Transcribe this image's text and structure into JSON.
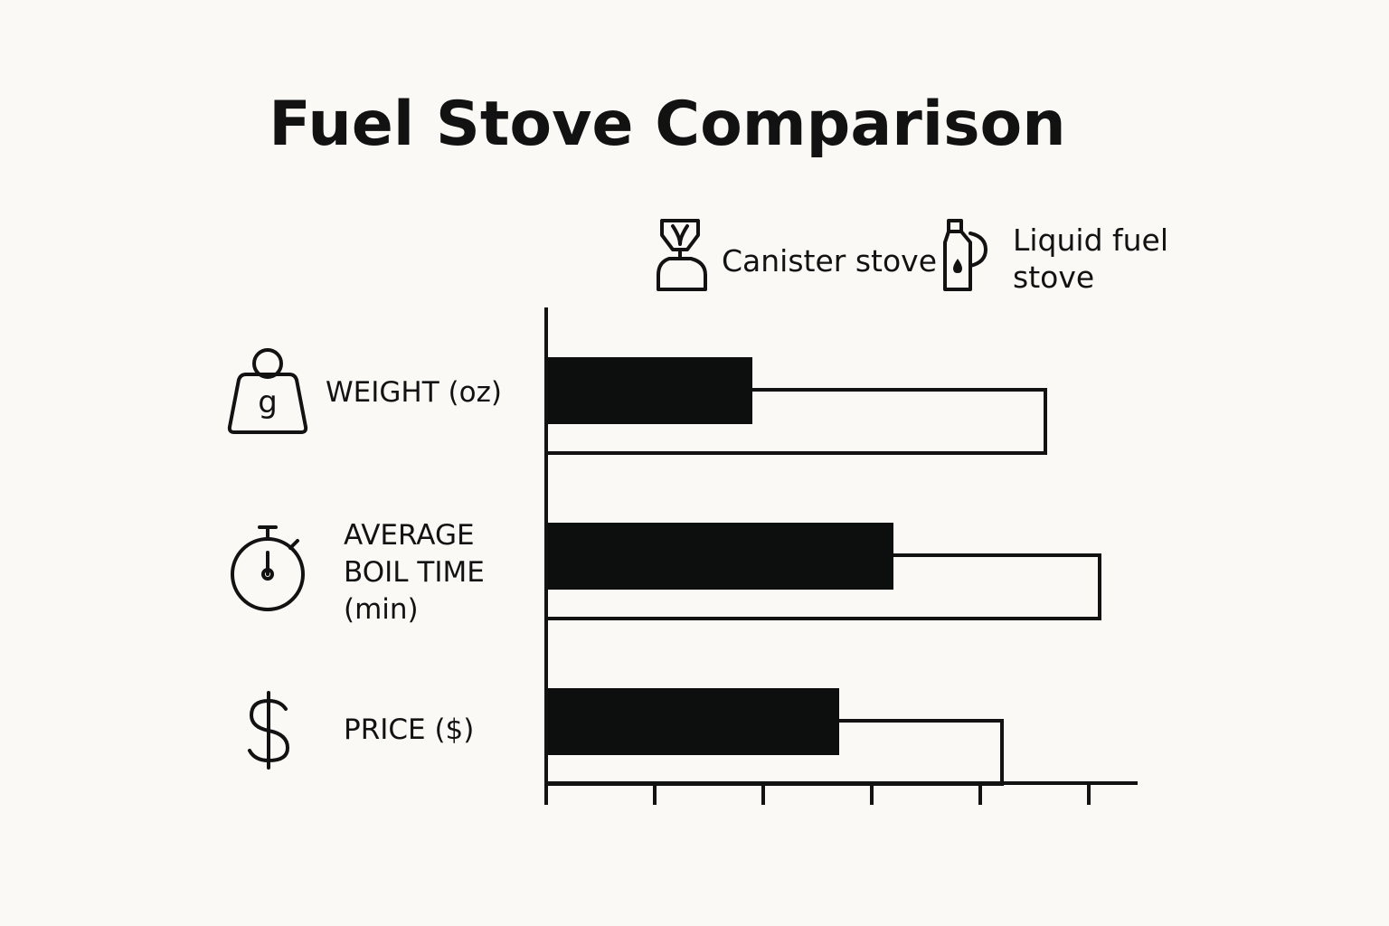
{
  "chart_data": {
    "type": "bar",
    "title": "Fuel Stove Comparison",
    "categories": [
      "WEIGHT (oz)",
      "AVERAGE BOIL TIME (min)",
      "PRICE ($)"
    ],
    "category_lines": [
      [
        "WEIGHT (oz)"
      ],
      [
        "AVERAGE",
        "BOIL TIME",
        "(min)"
      ],
      [
        "PRICE ($)"
      ]
    ],
    "category_icons": [
      "weight-icon",
      "stopwatch-icon",
      "dollar-icon"
    ],
    "weight_icon_letter": "g",
    "series": [
      {
        "name": "Canister stove",
        "legend_lines": [
          "Canister stove"
        ],
        "icon": "canister-stove-icon",
        "fill": "filled",
        "values": [
          1.9,
          3.2,
          2.7
        ]
      },
      {
        "name": "Liquid fuel stove",
        "legend_lines": [
          "Liquid fuel",
          "stove"
        ],
        "icon": "fuel-bottle-icon",
        "fill": "outline",
        "values": [
          4.6,
          5.1,
          4.2
        ]
      }
    ],
    "xlim": [
      0,
      5.3
    ],
    "xticks": [
      0,
      1,
      2,
      3,
      4,
      5
    ],
    "xtick_labels": [],
    "xlabel": "",
    "ylabel": "",
    "grid": false,
    "legend_position": "top-right",
    "colors": {
      "bar": "#0d0f0f",
      "outline": "#121212",
      "background": "#faf9f6"
    }
  }
}
